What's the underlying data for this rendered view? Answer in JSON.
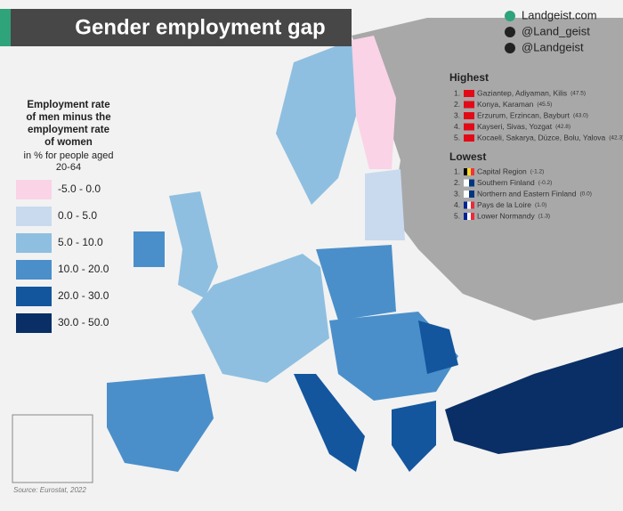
{
  "title": "Gender employment gap",
  "social": [
    "Landgeist.com",
    "@Land_geist",
    "@Landgeist"
  ],
  "legend": {
    "title": [
      "Employment rate",
      "of men minus the",
      "employment rate",
      "of women"
    ],
    "subtitle": [
      "in % for people aged",
      "20-64"
    ],
    "items": [
      {
        "label": "-5.0 -  0.0",
        "color": "#fad3e6"
      },
      {
        "label": "0.0  -  5.0",
        "color": "#c9daef"
      },
      {
        "label": "5.0  - 10.0",
        "color": "#8fbfe0"
      },
      {
        "label": "10.0 - 20.0",
        "color": "#4a8fca"
      },
      {
        "label": "20.0 - 30.0",
        "color": "#13569e"
      },
      {
        "label": "30.0 - 50.0",
        "color": "#0a2f66"
      }
    ]
  },
  "highest": {
    "title": "Highest",
    "rows": [
      {
        "rank": "1.",
        "name": "Gaziantep, Adiyaman, Kilis",
        "value": "(47.5)"
      },
      {
        "rank": "2.",
        "name": "Konya, Karaman",
        "value": "(45.5)"
      },
      {
        "rank": "3.",
        "name": "Erzurum, Erzincan, Bayburt",
        "value": "(43.0)"
      },
      {
        "rank": "4.",
        "name": "Kayseri, Sivas, Yozgat",
        "value": "(42.8)"
      },
      {
        "rank": "5.",
        "name": "Kocaeli, Sakarya, Düzce, Bolu, Yalova",
        "value": "(42.3)"
      }
    ]
  },
  "lowest": {
    "title": "Lowest",
    "rows": [
      {
        "rank": "1.",
        "name": "Capital Region",
        "value": "(-1.2)"
      },
      {
        "rank": "2.",
        "name": "Southern Finland",
        "value": "(-0.2)"
      },
      {
        "rank": "3.",
        "name": "Northern and Eastern Finland",
        "value": "(0.0)"
      },
      {
        "rank": "4.",
        "name": "Pays de la Loire",
        "value": "(1.0)"
      },
      {
        "rank": "5.",
        "name": "Lower Normandy",
        "value": "(1.3)"
      }
    ]
  },
  "source": "Source: Eurostat, 2022"
}
